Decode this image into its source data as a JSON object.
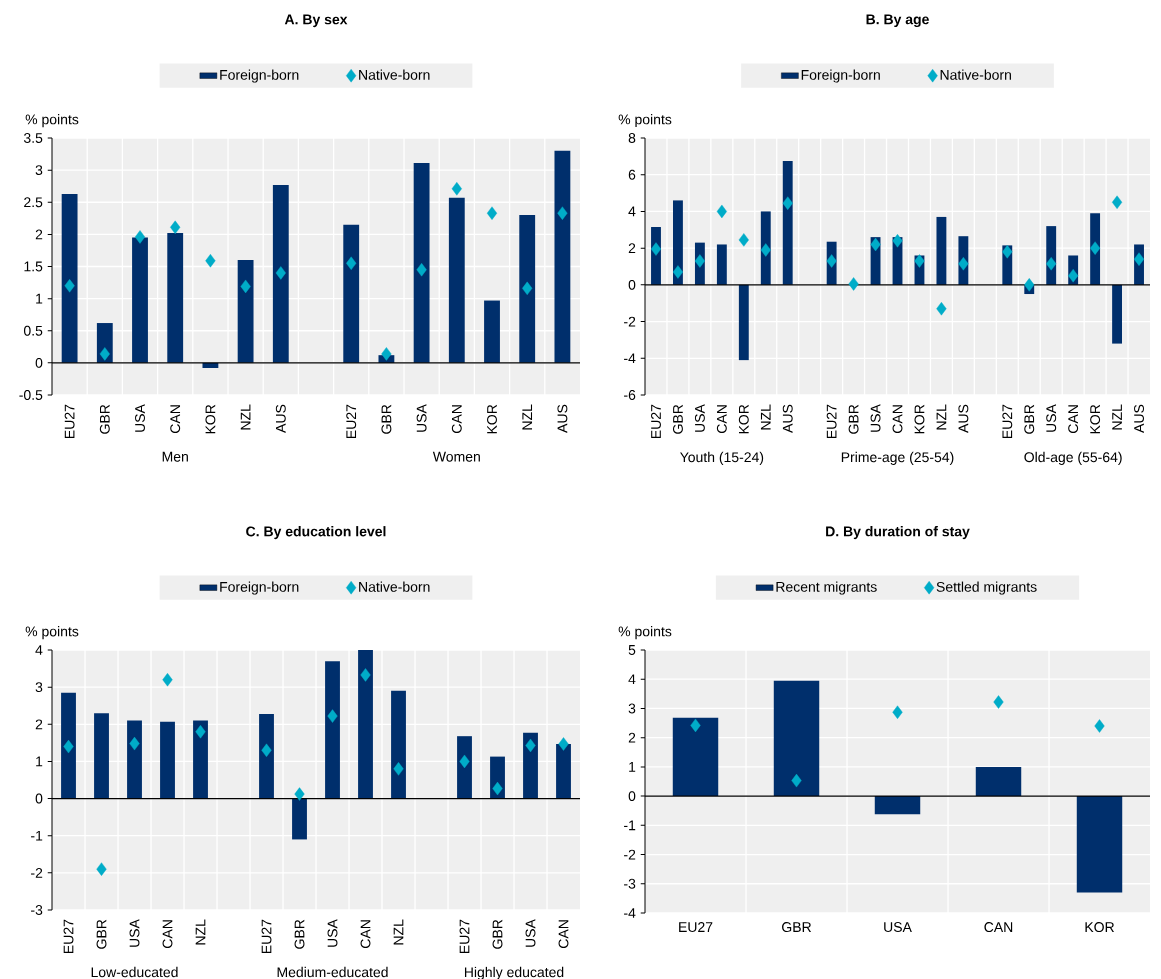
{
  "chart_data": [
    {
      "type": "bar",
      "title": "A. By sex",
      "ylabel": "% points",
      "categories": [
        "EU27",
        "GBR",
        "USA",
        "CAN",
        "KOR",
        "NZL",
        "AUS",
        null,
        "EU27",
        "GBR",
        "USA",
        "CAN",
        "KOR",
        "NZL",
        "AUS"
      ],
      "series": [
        {
          "name": "Foreign-born",
          "color": "#002f6c",
          "values": [
            2.63,
            0.62,
            1.95,
            2.02,
            -0.08,
            1.6,
            2.77,
            null,
            2.15,
            0.12,
            3.11,
            2.57,
            0.97,
            2.3,
            3.3
          ]
        },
        {
          "name": "Native-born",
          "type": "scatter",
          "marker": "diamond",
          "color": "#00acc8",
          "values": [
            1.2,
            0.14,
            1.96,
            2.11,
            1.59,
            1.19,
            1.4,
            null,
            1.55,
            0.14,
            1.45,
            2.71,
            2.33,
            1.16,
            2.33
          ]
        }
      ],
      "ylim": [
        -0.5,
        3.5
      ],
      "yticks": [
        -0.5,
        0,
        0.5,
        1,
        1.5,
        2,
        2.5,
        3,
        3.5
      ],
      "grid": true,
      "legend": "top",
      "annotations": [
        "Men",
        "Women"
      ]
    },
    {
      "type": "bar",
      "title": "B. By age",
      "ylabel": "% points",
      "categories": [
        "EU27",
        "GBR",
        "USA",
        "CAN",
        "KOR",
        "NZL",
        "AUS",
        null,
        "EU27",
        "GBR",
        "USA",
        "CAN",
        "KOR",
        "NZL",
        "AUS",
        null,
        "EU27",
        "GBR",
        "USA",
        "CAN",
        "KOR",
        "NZL",
        "AUS"
      ],
      "series": [
        {
          "name": "Foreign-born",
          "color": "#002f6c",
          "values": [
            3.15,
            4.6,
            2.3,
            2.2,
            -4.1,
            4.0,
            6.75,
            null,
            2.35,
            0.0,
            2.6,
            2.6,
            1.6,
            3.7,
            2.65,
            null,
            2.15,
            -0.5,
            3.2,
            1.6,
            3.9,
            -3.2,
            2.2
          ]
        },
        {
          "name": "Native-born",
          "type": "scatter",
          "marker": "diamond",
          "color": "#00acc8",
          "values": [
            1.95,
            0.7,
            1.3,
            4.0,
            2.45,
            1.9,
            4.45,
            null,
            1.3,
            0.05,
            2.2,
            2.4,
            1.3,
            -1.3,
            1.15,
            null,
            1.8,
            0.0,
            1.15,
            0.5,
            2.0,
            4.5,
            1.4
          ]
        }
      ],
      "ylim": [
        -6,
        8
      ],
      "yticks": [
        -6,
        -4,
        -2,
        0,
        2,
        4,
        6,
        8
      ],
      "grid": true,
      "legend": "top",
      "annotations": [
        "Youth (15-24)",
        "Prime-age (25-54)",
        "Old-age (55-64)"
      ]
    },
    {
      "type": "bar",
      "title": "C. By education level",
      "ylabel": "% points",
      "categories": [
        "EU27",
        "GBR",
        "USA",
        "CAN",
        "NZL",
        null,
        "EU27",
        "GBR",
        "USA",
        "CAN",
        "NZL",
        null,
        "EU27",
        "GBR",
        "USA",
        "CAN"
      ],
      "series": [
        {
          "name": "Foreign-born",
          "color": "#002f6c",
          "values": [
            2.85,
            2.3,
            2.1,
            2.07,
            2.1,
            null,
            2.28,
            -1.1,
            3.7,
            4.0,
            2.9,
            null,
            1.68,
            1.13,
            1.77,
            1.47
          ]
        },
        {
          "name": "Native-born",
          "type": "scatter",
          "marker": "diamond",
          "color": "#00acc8",
          "values": [
            1.4,
            -1.9,
            1.48,
            3.2,
            1.8,
            null,
            1.3,
            0.12,
            2.22,
            3.33,
            0.8,
            null,
            1.0,
            0.27,
            1.43,
            1.47
          ]
        }
      ],
      "ylim": [
        -3,
        4
      ],
      "yticks": [
        -3,
        -2,
        -1,
        0,
        1,
        2,
        3,
        4
      ],
      "grid": true,
      "legend": "top",
      "annotations": [
        "Low-educated",
        "Medium-educated",
        "Highly educated"
      ]
    },
    {
      "type": "bar",
      "title": "D. By duration of stay",
      "ylabel": "% points",
      "categories": [
        "EU27",
        "GBR",
        "USA",
        "CAN",
        "KOR"
      ],
      "series": [
        {
          "name": "Recent migrants",
          "color": "#002f6c",
          "values": [
            2.68,
            3.95,
            -0.62,
            1.0,
            -3.3
          ]
        },
        {
          "name": "Settled migrants",
          "type": "scatter",
          "marker": "diamond",
          "color": "#00acc8",
          "values": [
            2.42,
            0.53,
            2.87,
            3.22,
            2.4
          ]
        }
      ],
      "ylim": [
        -4,
        5
      ],
      "yticks": [
        -4,
        -3,
        -2,
        -1,
        0,
        1,
        2,
        3,
        4,
        5
      ],
      "grid": true,
      "legend": "top"
    }
  ]
}
